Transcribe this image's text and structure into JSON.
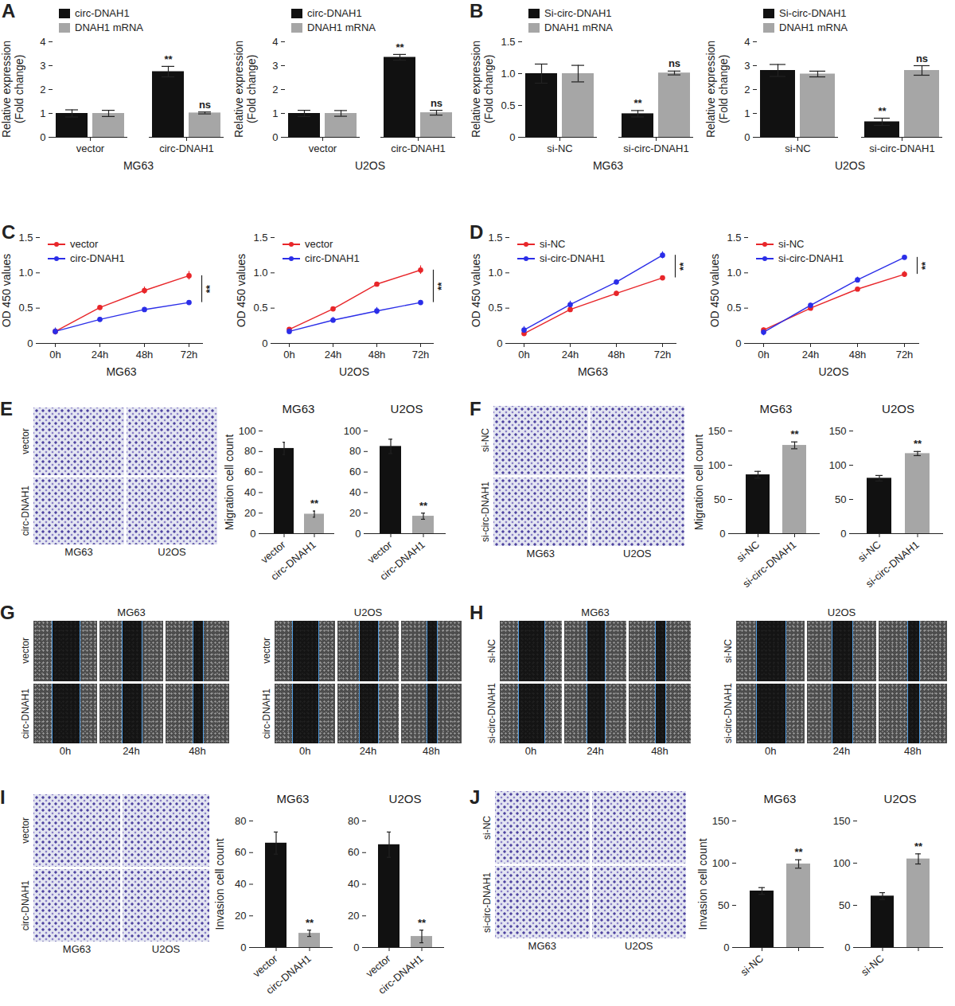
{
  "chart_data": [
    {
      "panel": "A",
      "type": "bar",
      "legend": "top",
      "x_label": "MG63",
      "y_label": "Relative expression\n(Fold change)",
      "categories": [
        "vector",
        "circ-DNAH1"
      ],
      "series": [
        {
          "name": "circ-DNAH1",
          "color": "#111111",
          "values": [
            1.0,
            2.75
          ],
          "errors": [
            0.15,
            0.22
          ],
          "significance": [
            null,
            "**"
          ]
        },
        {
          "name": "DNAH1 mRNA",
          "color": "#a6a6a6",
          "values": [
            1.0,
            1.02
          ],
          "errors": [
            0.13,
            0.04
          ],
          "significance": [
            null,
            "ns"
          ]
        }
      ],
      "ylim": [
        0,
        4
      ],
      "yticks": [
        0,
        1,
        2,
        3,
        4
      ]
    },
    {
      "type": "bar",
      "legend": "top",
      "x_label": "U2OS",
      "y_label": "Relative expression\n(Fold change)",
      "categories": [
        "vector",
        "circ-DNAH1"
      ],
      "series": [
        {
          "name": "circ-DNAH1",
          "color": "#111111",
          "values": [
            1.0,
            3.35
          ],
          "errors": [
            0.13,
            0.12
          ],
          "significance": [
            null,
            "**"
          ]
        },
        {
          "name": "DNAH1 mRNA",
          "color": "#a6a6a6",
          "values": [
            1.0,
            1.03
          ],
          "errors": [
            0.12,
            0.1
          ],
          "significance": [
            null,
            "ns"
          ]
        }
      ],
      "ylim": [
        0,
        4
      ],
      "yticks": [
        0,
        1,
        2,
        3,
        4
      ]
    },
    {
      "panel": "B",
      "type": "bar",
      "legend": "top",
      "x_label": "MG63",
      "y_label": "Relative expression\n(Fold change)",
      "categories": [
        "si-NC",
        "si-circ-DNAH1"
      ],
      "series": [
        {
          "name": "Si-circ-DNAH1",
          "color": "#111111",
          "values": [
            1.0,
            0.37
          ],
          "errors": [
            0.15,
            0.05
          ],
          "significance": [
            null,
            "**"
          ]
        },
        {
          "name": "DNAH1 mRNA",
          "color": "#a6a6a6",
          "values": [
            1.0,
            1.01
          ],
          "errors": [
            0.13,
            0.03
          ],
          "significance": [
            null,
            "ns"
          ]
        }
      ],
      "ylim": [
        0,
        1.5
      ],
      "yticks": [
        0,
        0.5,
        {
          "value": 1,
          "label": "1.0"
        },
        1.5
      ]
    },
    {
      "type": "bar",
      "legend": "top",
      "x_label": "U2OS",
      "y_label": "Relative expression\n(Fold change)",
      "categories": [
        "si-NC",
        "si-circ-DNAH1"
      ],
      "series": [
        {
          "name": "Si-circ-DNAH1",
          "color": "#111111",
          "values": [
            2.8,
            0.65
          ],
          "errors": [
            0.25,
            0.15
          ],
          "significance": [
            null,
            "**"
          ]
        },
        {
          "name": "DNAH1 mRNA",
          "color": "#a6a6a6",
          "values": [
            2.65,
            2.8
          ],
          "errors": [
            0.12,
            0.2
          ],
          "significance": [
            null,
            "ns"
          ]
        }
      ],
      "ylim": [
        0,
        4
      ],
      "yticks": [
        0,
        1,
        2,
        3,
        4
      ]
    },
    {
      "panel": "C",
      "type": "line",
      "legend": "top-left",
      "x_label": "MG63",
      "y_label": "OD 450 values",
      "x": [
        "0h",
        "24h",
        "48h",
        "72h"
      ],
      "series": [
        {
          "name": "vector",
          "color": "#e8262a",
          "marker": "circle",
          "values": [
            0.17,
            0.51,
            0.75,
            0.96
          ],
          "errors": [
            0.04,
            0.02,
            0.05,
            0.06
          ]
        },
        {
          "name": "circ-DNAH1",
          "color": "#2b2ee8",
          "marker": "circle",
          "values": [
            0.17,
            0.34,
            0.48,
            0.58
          ],
          "errors": [
            0.05,
            0.03,
            0.03,
            0.02
          ]
        }
      ],
      "annotations": [
        {
          "text": "**",
          "at": "72h",
          "between": [
            "vector",
            "circ-DNAH1"
          ]
        }
      ],
      "ylim": [
        0,
        1.5
      ],
      "yticks": [
        0,
        0.5,
        {
          "value": 1,
          "label": "1.0"
        },
        1.5
      ]
    },
    {
      "type": "line",
      "legend": "top-left",
      "x_label": "U2OS",
      "y_label": "OD 450 values",
      "x": [
        "0h",
        "24h",
        "48h",
        "72h"
      ],
      "series": [
        {
          "name": "vector",
          "color": "#e8262a",
          "marker": "circle",
          "values": [
            0.2,
            0.49,
            0.84,
            1.04
          ],
          "errors": [
            0.02,
            0.01,
            0.03,
            0.06
          ]
        },
        {
          "name": "circ-DNAH1",
          "color": "#2b2ee8",
          "marker": "circle",
          "values": [
            0.17,
            0.33,
            0.46,
            0.58
          ],
          "errors": [
            0.04,
            0.04,
            0.05,
            0.03
          ]
        }
      ],
      "annotations": [
        {
          "text": "**",
          "at": "72h",
          "between": [
            "vector",
            "circ-DNAH1"
          ]
        }
      ],
      "ylim": [
        0,
        1.5
      ],
      "yticks": [
        0,
        0.5,
        {
          "value": 1,
          "label": "1.0"
        },
        1.5
      ]
    },
    {
      "panel": "D",
      "type": "line",
      "legend": "top-left",
      "x_label": "MG63",
      "y_label": "OD 450 values",
      "x": [
        "0h",
        "24h",
        "48h",
        "72h"
      ],
      "series": [
        {
          "name": "si-NC",
          "color": "#e8262a",
          "marker": "circle",
          "values": [
            0.14,
            0.48,
            0.71,
            0.93
          ],
          "errors": [
            0.03,
            0.02,
            0.03,
            0.02
          ]
        },
        {
          "name": "si-circ-DNAH1",
          "color": "#2b2ee8",
          "marker": "circle",
          "values": [
            0.19,
            0.55,
            0.87,
            1.25
          ],
          "errors": [
            0.05,
            0.05,
            0.03,
            0.05
          ]
        }
      ],
      "annotations": [
        {
          "text": "**",
          "at": "72h",
          "between": [
            "si-NC",
            "si-circ-DNAH1"
          ]
        }
      ],
      "ylim": [
        0,
        1.5
      ],
      "yticks": [
        0,
        0.5,
        {
          "value": 1,
          "label": "1.0"
        },
        1.5
      ]
    },
    {
      "type": "line",
      "legend": "top-left",
      "x_label": "U2OS",
      "y_label": "OD 450 values",
      "x": [
        "0h",
        "24h",
        "48h",
        "72h"
      ],
      "series": [
        {
          "name": "si-NC",
          "color": "#e8262a",
          "marker": "circle",
          "values": [
            0.19,
            0.5,
            0.77,
            0.98
          ],
          "errors": [
            0.03,
            0.02,
            0.02,
            0.04
          ]
        },
        {
          "name": "si-circ-DNAH1",
          "color": "#2b2ee8",
          "marker": "circle",
          "values": [
            0.16,
            0.54,
            0.9,
            1.22
          ],
          "errors": [
            0.05,
            0.03,
            0.04,
            0.02
          ]
        }
      ],
      "annotations": [
        {
          "text": "**",
          "at": "72h",
          "between": [
            "si-NC",
            "si-circ-DNAH1"
          ]
        }
      ],
      "ylim": [
        0,
        1.5
      ],
      "yticks": [
        0,
        0.5,
        {
          "value": 1,
          "label": "1.0"
        },
        1.5
      ]
    },
    {
      "type": "bar",
      "title": "MG63",
      "y_label": "Migration cell count",
      "categories": [
        "vector",
        "circ-DNAH1"
      ],
      "values": [
        83,
        19
      ],
      "errors": [
        6,
        3
      ],
      "significance": [
        null,
        "**"
      ],
      "colors": [
        "#111111",
        "#a6a6a6"
      ],
      "ylim": [
        0,
        100
      ],
      "yticks": [
        0,
        20,
        40,
        60,
        80,
        100
      ]
    },
    {
      "type": "bar",
      "title": "U2OS",
      "categories": [
        "vector",
        "circ-DNAH1"
      ],
      "values": [
        85,
        17
      ],
      "errors": [
        7,
        3
      ],
      "significance": [
        null,
        "**"
      ],
      "colors": [
        "#111111",
        "#a6a6a6"
      ],
      "ylim": [
        0,
        100
      ],
      "yticks": [
        0,
        20,
        40,
        60,
        80,
        100
      ]
    },
    {
      "type": "bar",
      "title": "MG63",
      "y_label": "Migration cell count",
      "categories": [
        "si-NC",
        "si-circ-DNAH1"
      ],
      "values": [
        86,
        129
      ],
      "errors": [
        5,
        5
      ],
      "significance": [
        null,
        "**"
      ],
      "colors": [
        "#111111",
        "#a6a6a6"
      ],
      "ylim": [
        0,
        150
      ],
      "yticks": [
        0,
        50,
        100,
        150
      ]
    },
    {
      "type": "bar",
      "title": "U2OS",
      "categories": [
        "si-NC",
        "si-circ-DNAH1"
      ],
      "values": [
        81,
        117
      ],
      "errors": [
        4,
        3
      ],
      "significance": [
        null,
        "**"
      ],
      "colors": [
        "#111111",
        "#a6a6a6"
      ],
      "ylim": [
        0,
        150
      ],
      "yticks": [
        0,
        50,
        100,
        150
      ]
    },
    {
      "type": "bar",
      "title": "MG63",
      "y_label": "Invasion cell count",
      "categories": [
        "vector",
        "circ-DNAH1"
      ],
      "values": [
        66,
        9
      ],
      "errors": [
        7,
        2
      ],
      "significance": [
        null,
        "**"
      ],
      "colors": [
        "#111111",
        "#a6a6a6"
      ],
      "ylim": [
        0,
        80
      ],
      "yticks": [
        0,
        20,
        40,
        60,
        80
      ]
    },
    {
      "type": "bar",
      "title": "U2OS",
      "categories": [
        "vector",
        "circ-DNAH1"
      ],
      "values": [
        65,
        7
      ],
      "errors": [
        8,
        4
      ],
      "significance": [
        null,
        "**"
      ],
      "colors": [
        "#111111",
        "#a6a6a6"
      ],
      "ylim": [
        0,
        80
      ],
      "yticks": [
        0,
        20,
        40,
        60,
        80
      ]
    },
    {
      "type": "bar",
      "title": "MG63",
      "y_label": "Invasion cell count",
      "categories": [
        "si-NC",
        null
      ],
      "values": [
        67,
        99
      ],
      "errors": [
        4,
        5
      ],
      "significance": [
        null,
        "**"
      ],
      "colors": [
        "#111111",
        "#a6a6a6"
      ],
      "ylim": [
        0,
        150
      ],
      "yticks": [
        0,
        50,
        100,
        150
      ]
    },
    {
      "type": "bar",
      "title": "U2OS",
      "categories": [
        "si-NC",
        null
      ],
      "values": [
        61,
        105
      ],
      "errors": [
        4,
        6
      ],
      "significance": [
        null,
        "**"
      ],
      "colors": [
        "#111111",
        "#a6a6a6"
      ],
      "ylim": [
        0,
        150
      ],
      "yticks": [
        0,
        50,
        100,
        150
      ]
    }
  ],
  "image_panels": [
    {
      "panel": "E",
      "type": "micrograph",
      "rows": [
        "vector",
        "circ-DNAH1"
      ],
      "columns": [
        "MG63",
        "U2OS"
      ]
    },
    {
      "panel": "F",
      "type": "micrograph",
      "rows": [
        "si-NC",
        "si-circ-DNAH1"
      ],
      "columns": [
        "MG63",
        "U2OS"
      ]
    },
    {
      "panel": "G",
      "type": "scratch",
      "groups": [
        {
          "title": "MG63",
          "rows": [
            "vector",
            "circ-DNAH1"
          ],
          "columns": [
            "0h",
            "24h",
            "48h"
          ]
        },
        {
          "title": "U2OS",
          "rows": [
            "vector",
            "circ-DNAH1"
          ],
          "columns": [
            "0h",
            "24h",
            "48h"
          ]
        }
      ]
    },
    {
      "panel": "H",
      "type": "scratch",
      "groups": [
        {
          "title": "MG63",
          "rows": [
            "si-NC",
            "si-circ-DNAH1"
          ],
          "columns": [
            "0h",
            "24h",
            "48h"
          ]
        },
        {
          "title": "U2OS",
          "rows": [
            "si-NC",
            "si-circ-DNAH1"
          ],
          "columns": [
            "0h",
            "24h",
            "48h"
          ]
        }
      ]
    },
    {
      "panel": "I",
      "type": "micrograph",
      "rows": [
        "vector",
        "circ-DNAH1"
      ],
      "columns": [
        "MG63",
        "U2OS"
      ]
    },
    {
      "panel": "J",
      "type": "micrograph",
      "rows": [
        "si-NC",
        "si-circ-DNAH1"
      ],
      "columns": [
        "MG63",
        "U2OS"
      ]
    }
  ]
}
